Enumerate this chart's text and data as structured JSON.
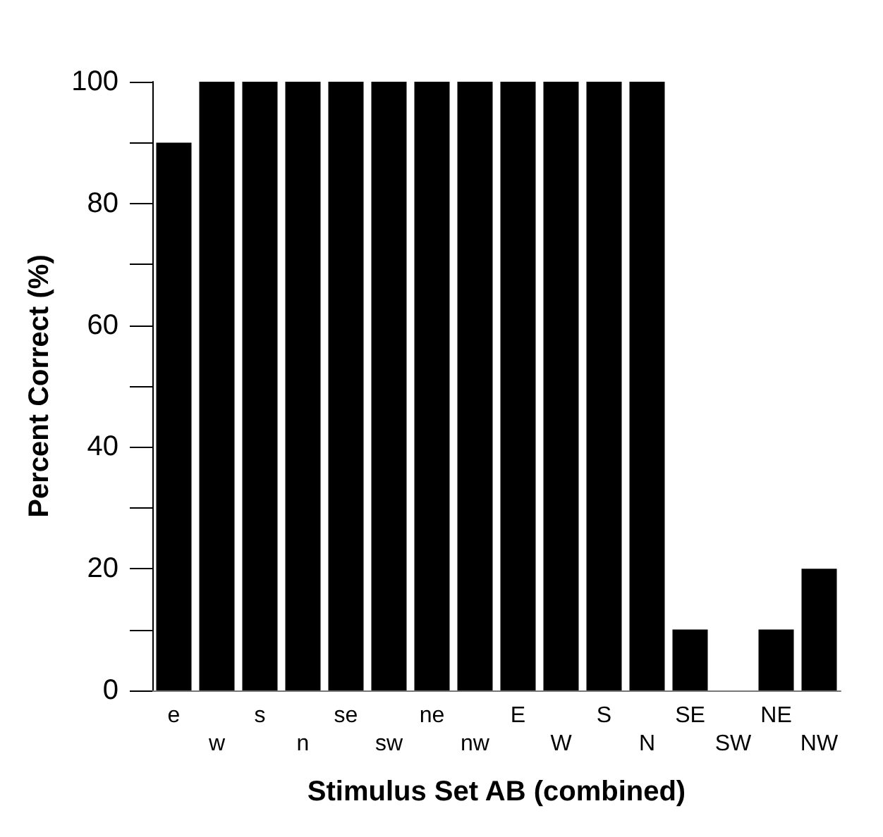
{
  "chart_data": {
    "type": "bar",
    "xlabel": "Stimulus Set AB (combined)",
    "ylabel": "Percent Correct (%)",
    "categories": [
      "e",
      "w",
      "s",
      "n",
      "se",
      "sw",
      "ne",
      "nw",
      "E",
      "W",
      "S",
      "N",
      "SE",
      "SW",
      "NE",
      "NW"
    ],
    "values": [
      90,
      100,
      100,
      100,
      100,
      100,
      100,
      100,
      100,
      100,
      100,
      100,
      10,
      0,
      10,
      20
    ],
    "color": "#000000",
    "ylim": [
      0,
      100
    ],
    "yticks": [
      0,
      {
        "value": 10,
        "label": null
      },
      20,
      {
        "value": 30,
        "label": null
      },
      40,
      {
        "value": 50,
        "label": null
      },
      60,
      {
        "value": 70,
        "label": null
      },
      80,
      {
        "value": 90,
        "label": null
      },
      100
    ],
    "grid": false
  }
}
